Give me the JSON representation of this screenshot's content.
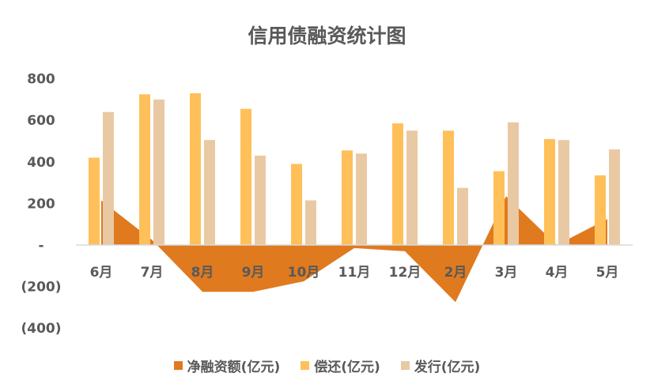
{
  "chart_data": {
    "type": "bar",
    "title": "信用债融资统计图",
    "categories": [
      "6月",
      "7月",
      "8月",
      "9月",
      "10月",
      "11月",
      "12月",
      "2月",
      "3月",
      "4月",
      "5月"
    ],
    "series": [
      {
        "name": "净融资额(亿元)",
        "type": "area",
        "color": "#E07A1F",
        "values": [
          215,
          25,
          -225,
          -225,
          -175,
          -15,
          -30,
          -275,
          235,
          0,
          125
        ]
      },
      {
        "name": "偿还(亿元)",
        "type": "bar",
        "color": "#FFC05A",
        "values": [
          420,
          725,
          730,
          655,
          390,
          455,
          585,
          550,
          355,
          510,
          335
        ]
      },
      {
        "name": "发行(亿元)",
        "type": "bar",
        "color": "#E9C9A3",
        "values": [
          640,
          700,
          505,
          430,
          215,
          440,
          550,
          275,
          590,
          505,
          460
        ]
      }
    ],
    "yticks": [
      {
        "value": 800,
        "label": "800"
      },
      {
        "value": 600,
        "label": "600"
      },
      {
        "value": 400,
        "label": "400"
      },
      {
        "value": 200,
        "label": "200"
      },
      {
        "value": 0,
        "label": "-"
      },
      {
        "value": -200,
        "label": "(200)"
      },
      {
        "value": -400,
        "label": "(400)"
      }
    ],
    "ylim": [
      -400,
      800
    ],
    "grid": false,
    "legend_position": "bottom"
  }
}
